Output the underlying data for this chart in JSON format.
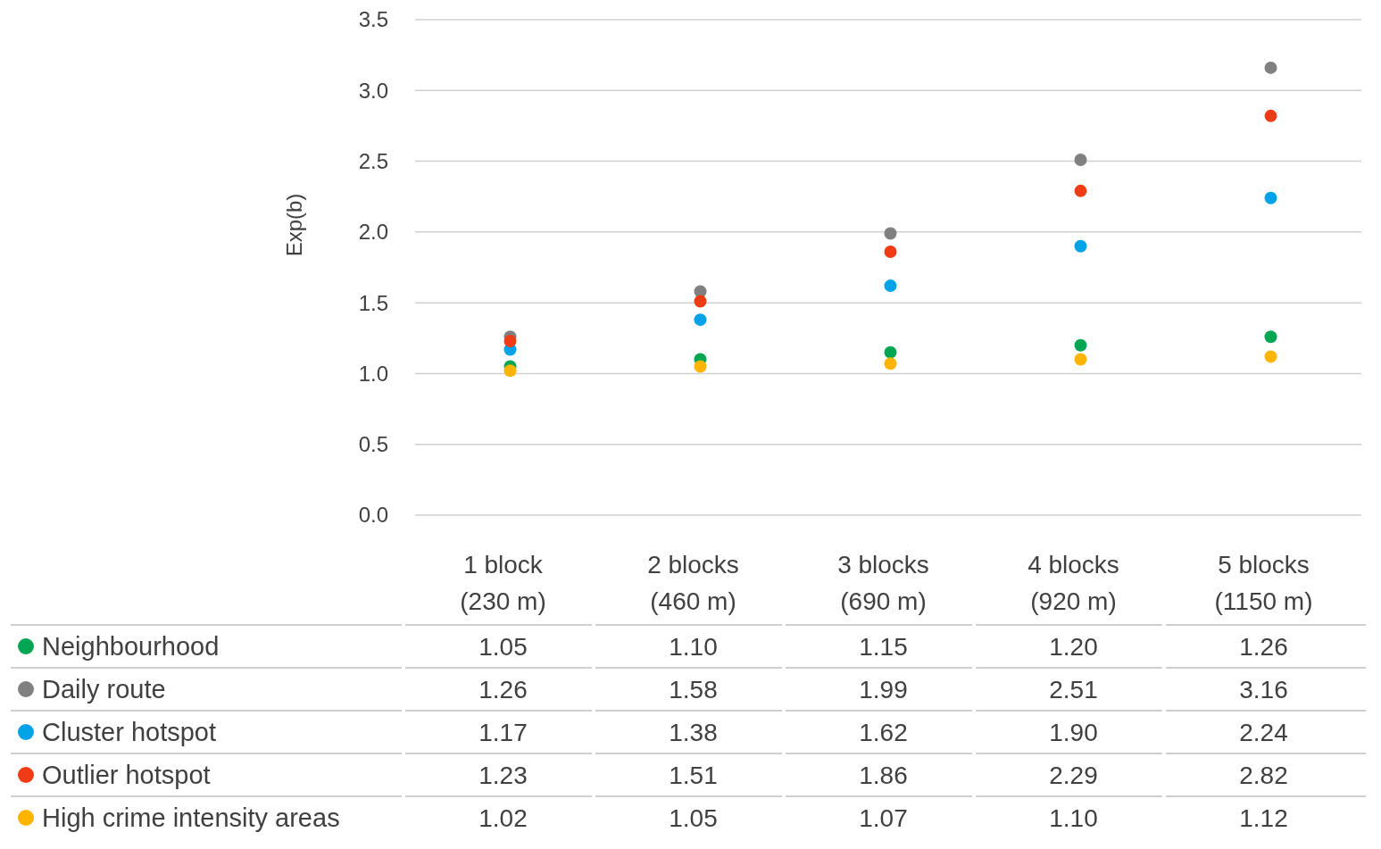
{
  "chart_data": {
    "type": "scatter",
    "ylabel": "Exp(b)",
    "categories": [
      "1 block\n(230 m)",
      "2 blocks\n(460 m)",
      "3 blocks\n(690 m)",
      "4 blocks\n(920 m)",
      "5 blocks\n(1150 m)"
    ],
    "series": [
      {
        "name": "Neighbourhood",
        "color": "#00a651",
        "values": [
          1.05,
          1.1,
          1.15,
          1.2,
          1.26
        ],
        "value_labels": [
          "1.05",
          "1.10",
          "1.15",
          "1.20",
          "1.26"
        ]
      },
      {
        "name": "Daily route",
        "color": "#808080",
        "values": [
          1.26,
          1.58,
          1.99,
          2.51,
          3.16
        ],
        "value_labels": [
          "1.26",
          "1.58",
          "1.99",
          "2.51",
          "3.16"
        ]
      },
      {
        "name": "Cluster hotspot",
        "color": "#00a2e8",
        "values": [
          1.17,
          1.38,
          1.62,
          1.9,
          2.24
        ],
        "value_labels": [
          "1.17",
          "1.38",
          "1.62",
          "1.90",
          "2.24"
        ]
      },
      {
        "name": "Outlier hotspot",
        "color": "#f03c16",
        "values": [
          1.23,
          1.51,
          1.86,
          2.29,
          2.82
        ],
        "value_labels": [
          "1.23",
          "1.51",
          "1.86",
          "2.29",
          "2.82"
        ]
      },
      {
        "name": "High crime intensity areas",
        "color": "#ffb400",
        "values": [
          1.02,
          1.05,
          1.07,
          1.1,
          1.12
        ],
        "value_labels": [
          "1.02",
          "1.05",
          "1.07",
          "1.10",
          "1.12"
        ]
      }
    ],
    "ylim": [
      0,
      3.5
    ],
    "yticks": [
      {
        "value": 0,
        "label": "0.0"
      },
      {
        "value": 0.5,
        "label": "0.5"
      },
      {
        "value": 1,
        "label": "1.0"
      },
      {
        "value": 1.5,
        "label": "1.5"
      },
      {
        "value": 2,
        "label": "2.0"
      },
      {
        "value": 2.5,
        "label": "2.5"
      },
      {
        "value": 3,
        "label": "3.0"
      },
      {
        "value": 3.5,
        "label": "3.5"
      }
    ],
    "grid": "y",
    "legend": "bottom",
    "marker": "circle"
  }
}
